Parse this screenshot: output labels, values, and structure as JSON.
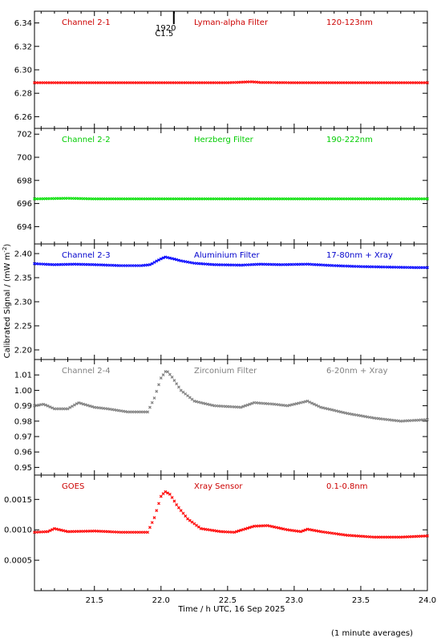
{
  "chart_data": {
    "type": "scatter",
    "xlabel": "Time / h UTC, 16 Sep 2025",
    "ylabel_main": "Calibrated Signal / (mW m",
    "ylabel_sup": "-2",
    "ylabel_close": ")",
    "footnote": "(1 minute averages)",
    "xlim": [
      21.05,
      24.0
    ],
    "xticks": [
      21.5,
      22.0,
      22.5,
      23.0,
      23.5,
      24.0
    ],
    "xtick_labels": [
      "21.5",
      "22.0",
      "22.5",
      "23.0",
      "23.5",
      "24.0"
    ],
    "marker": {
      "label_top": "1920",
      "label_bottom": "C1.5",
      "x": 22.03
    },
    "panels": [
      {
        "id": "panel-channel-2-1",
        "labels": [
          "Channel 2-1",
          "Lyman-alpha Filter",
          "120-123nm"
        ],
        "color": "#ff0000",
        "label_color": "#cc0000",
        "ylim": [
          6.25,
          6.35
        ],
        "yticks": [
          6.26,
          6.28,
          6.3,
          6.32,
          6.34
        ],
        "ytick_labels": [
          "6.26",
          "6.28",
          "6.30",
          "6.32",
          "6.34"
        ],
        "profile": [
          [
            21.05,
            6.289
          ],
          [
            21.5,
            6.289
          ],
          [
            22.0,
            6.289
          ],
          [
            22.5,
            6.289
          ],
          [
            22.62,
            6.2895
          ],
          [
            22.68,
            6.2898
          ],
          [
            22.75,
            6.2892
          ],
          [
            23.0,
            6.289
          ],
          [
            23.5,
            6.289
          ],
          [
            24.0,
            6.289
          ]
        ]
      },
      {
        "id": "panel-channel-2-2",
        "labels": [
          "Channel 2-2",
          "Herzberg Filter",
          "190-222nm"
        ],
        "color": "#00e000",
        "label_color": "#00cc00",
        "ylim": [
          692.5,
          702.5
        ],
        "yticks": [
          694,
          696,
          698,
          700,
          702
        ],
        "ytick_labels": [
          "694",
          "696",
          "698",
          "700",
          "702"
        ],
        "profile": [
          [
            21.05,
            696.4
          ],
          [
            21.3,
            696.45
          ],
          [
            21.5,
            696.4
          ],
          [
            22.0,
            696.4
          ],
          [
            22.5,
            696.4
          ],
          [
            23.0,
            696.4
          ],
          [
            23.5,
            696.4
          ],
          [
            24.0,
            696.4
          ]
        ]
      },
      {
        "id": "panel-channel-2-3",
        "labels": [
          "Channel 2-3",
          "Aluminium Filter",
          "17-80nm + Xray"
        ],
        "color": "#0000ff",
        "label_color": "#0000cc",
        "ylim": [
          2.18,
          2.42
        ],
        "yticks": [
          2.2,
          2.25,
          2.3,
          2.35,
          2.4
        ],
        "ytick_labels": [
          "2.20",
          "2.25",
          "2.30",
          "2.35",
          "2.40"
        ],
        "profile": [
          [
            21.05,
            2.379
          ],
          [
            21.2,
            2.377
          ],
          [
            21.35,
            2.378
          ],
          [
            21.5,
            2.377
          ],
          [
            21.7,
            2.375
          ],
          [
            21.85,
            2.375
          ],
          [
            21.92,
            2.377
          ],
          [
            21.97,
            2.385
          ],
          [
            22.03,
            2.393
          ],
          [
            22.08,
            2.39
          ],
          [
            22.15,
            2.385
          ],
          [
            22.25,
            2.38
          ],
          [
            22.4,
            2.377
          ],
          [
            22.6,
            2.376
          ],
          [
            22.75,
            2.378
          ],
          [
            22.9,
            2.377
          ],
          [
            23.1,
            2.378
          ],
          [
            23.3,
            2.375
          ],
          [
            23.5,
            2.373
          ],
          [
            23.7,
            2.372
          ],
          [
            23.9,
            2.371
          ],
          [
            24.0,
            2.371
          ]
        ]
      },
      {
        "id": "panel-channel-2-4",
        "labels": [
          "Channel 2-4",
          "Zirconium Filter",
          "6-20nm + Xray"
        ],
        "color": "#808080",
        "label_color": "#808080",
        "ylim": [
          0.945,
          1.02
        ],
        "yticks": [
          0.95,
          0.96,
          0.97,
          0.98,
          0.99,
          1.0,
          1.01
        ],
        "ytick_labels": [
          "0.95",
          "0.96",
          "0.97",
          "0.98",
          "0.99",
          "1.00",
          "1.01"
        ],
        "profile": [
          [
            21.05,
            0.99
          ],
          [
            21.12,
            0.991
          ],
          [
            21.2,
            0.988
          ],
          [
            21.3,
            0.988
          ],
          [
            21.38,
            0.992
          ],
          [
            21.5,
            0.989
          ],
          [
            21.6,
            0.988
          ],
          [
            21.75,
            0.986
          ],
          [
            21.9,
            0.986
          ],
          [
            21.95,
            0.995
          ],
          [
            22.0,
            1.008
          ],
          [
            22.04,
            1.013
          ],
          [
            22.08,
            1.009
          ],
          [
            22.15,
            1.0
          ],
          [
            22.25,
            0.993
          ],
          [
            22.4,
            0.99
          ],
          [
            22.6,
            0.989
          ],
          [
            22.7,
            0.992
          ],
          [
            22.85,
            0.991
          ],
          [
            22.95,
            0.99
          ],
          [
            23.05,
            0.992
          ],
          [
            23.1,
            0.993
          ],
          [
            23.2,
            0.989
          ],
          [
            23.4,
            0.985
          ],
          [
            23.6,
            0.982
          ],
          [
            23.8,
            0.98
          ],
          [
            24.0,
            0.981
          ]
        ]
      },
      {
        "id": "panel-goes",
        "labels": [
          "GOES",
          "Xray Sensor",
          "0.1-0.8nm"
        ],
        "color": "#ff0000",
        "label_color": "#cc0000",
        "ylim": [
          0.0,
          0.0019
        ],
        "yticks": [
          0.0005,
          0.001,
          0.0015
        ],
        "ytick_labels": [
          "0.0005",
          "0.0010",
          "0.0015"
        ],
        "profile": [
          [
            21.05,
            0.00096
          ],
          [
            21.15,
            0.00097
          ],
          [
            21.2,
            0.00102
          ],
          [
            21.3,
            0.00097
          ],
          [
            21.5,
            0.00098
          ],
          [
            21.7,
            0.00096
          ],
          [
            21.9,
            0.00096
          ],
          [
            21.95,
            0.0012
          ],
          [
            22.0,
            0.00155
          ],
          [
            22.03,
            0.00163
          ],
          [
            22.07,
            0.00158
          ],
          [
            22.12,
            0.0014
          ],
          [
            22.2,
            0.00118
          ],
          [
            22.3,
            0.00102
          ],
          [
            22.45,
            0.00097
          ],
          [
            22.55,
            0.00096
          ],
          [
            22.7,
            0.00106
          ],
          [
            22.8,
            0.00107
          ],
          [
            22.95,
            0.001
          ],
          [
            23.05,
            0.00097
          ],
          [
            23.1,
            0.00101
          ],
          [
            23.2,
            0.00097
          ],
          [
            23.4,
            0.00091
          ],
          [
            23.6,
            0.00088
          ],
          [
            23.8,
            0.00088
          ],
          [
            24.0,
            0.0009
          ]
        ]
      }
    ]
  }
}
